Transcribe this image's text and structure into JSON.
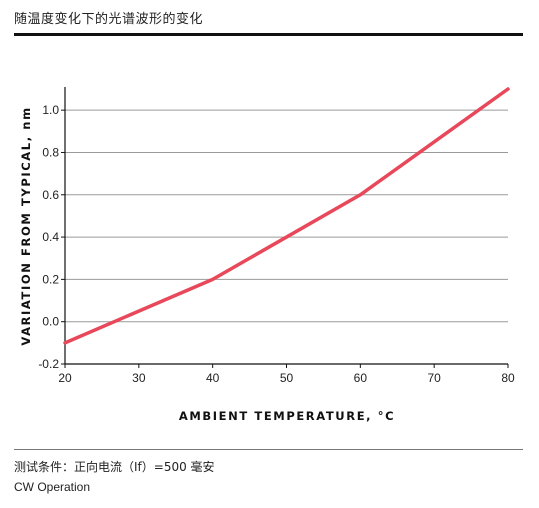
{
  "header": {
    "title": "随温度变化下的光谱波形的变化"
  },
  "chart_data": {
    "type": "line",
    "title": "",
    "xlabel": "AMBIENT TEMPERATURE, °C",
    "ylabel": "VARIATION FROM TYPICAL, nm",
    "xlim": [
      20,
      80
    ],
    "ylim": [
      -0.2,
      1.1
    ],
    "x_ticks": [
      20,
      30,
      40,
      50,
      60,
      70,
      80
    ],
    "x_tick_labels": [
      "20",
      "30",
      "40",
      "50",
      "60",
      "70",
      "80"
    ],
    "y_ticks": [
      -0.2,
      0.0,
      0.2,
      0.4,
      0.6,
      0.8,
      1.0
    ],
    "y_tick_labels": [
      "-0.2",
      "0.0",
      "0.2",
      "0.4",
      "0.6",
      "0.8",
      "1.0"
    ],
    "grid": "horizontal",
    "series": [
      {
        "x": [
          20,
          40,
          50,
          60,
          80
        ],
        "y": [
          -0.1,
          0.2,
          0.4,
          0.6,
          1.1
        ]
      }
    ],
    "colors": {
      "line": "#e8485a",
      "grid": "#9a9a9a",
      "axis": "#111111"
    }
  },
  "footer": {
    "conditions": "测试条件：正向电流（If）=500 毫安",
    "mode": "CW Operation"
  }
}
